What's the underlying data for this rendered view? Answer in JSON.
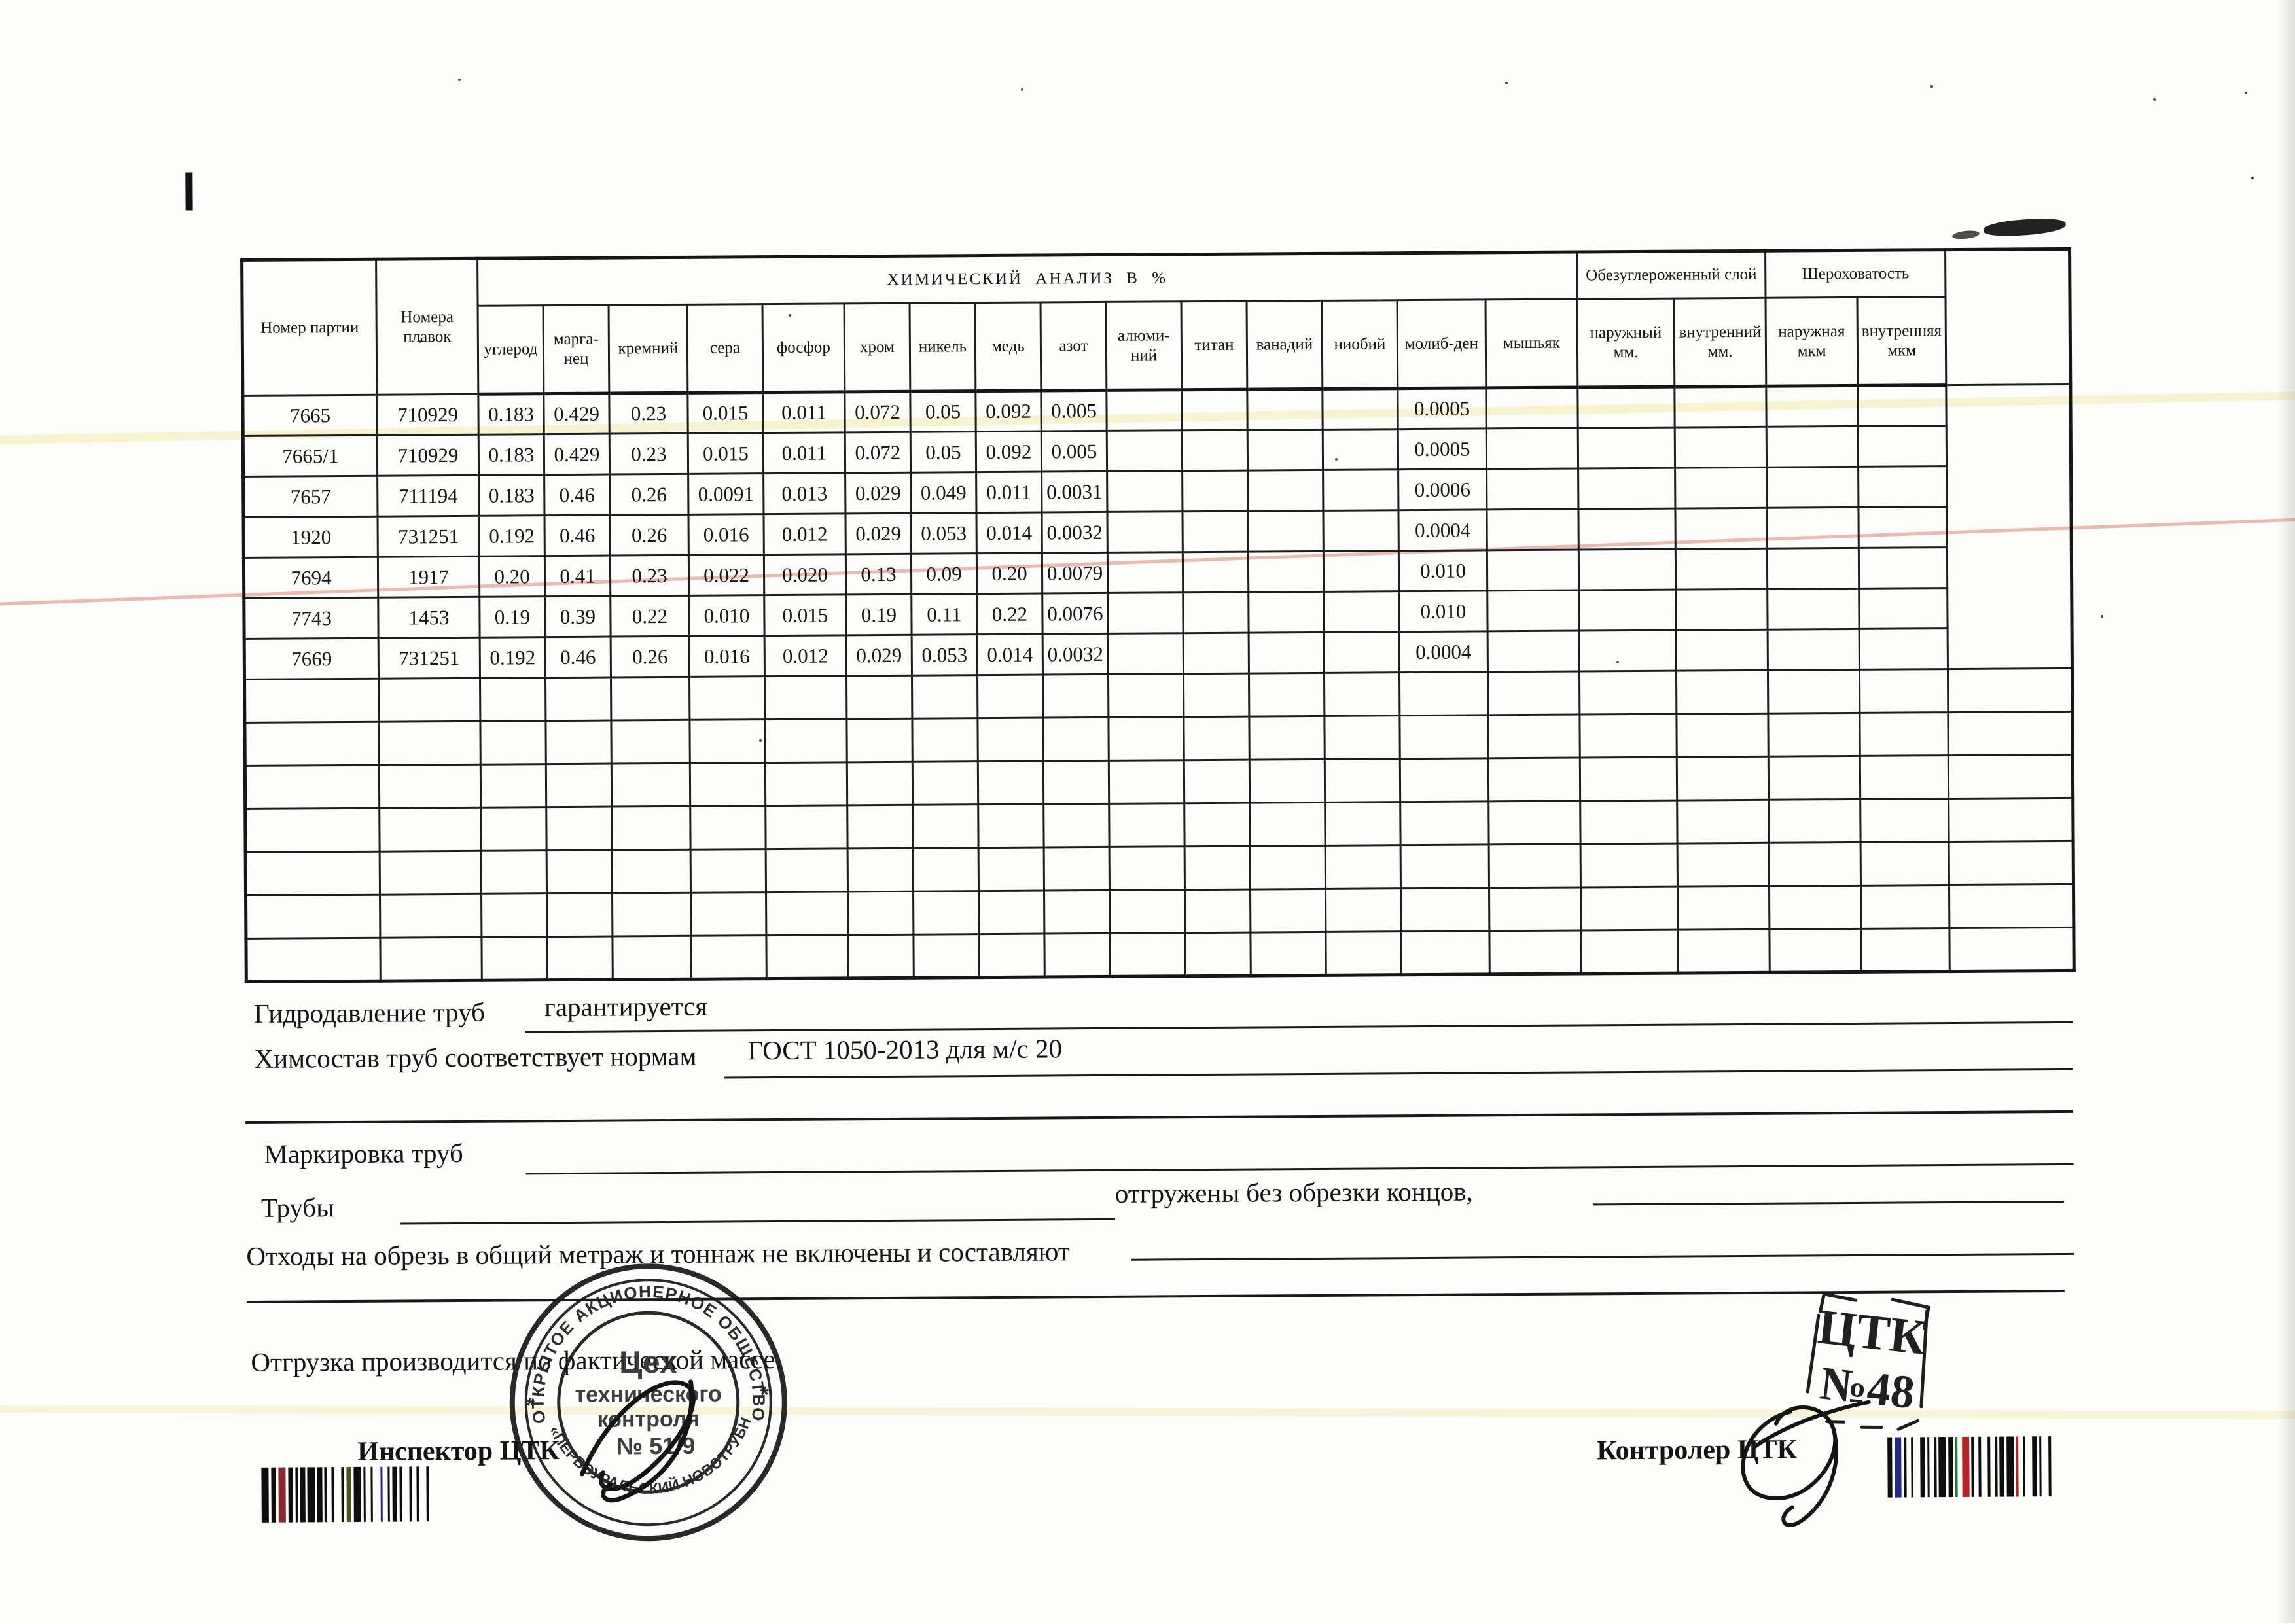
{
  "page": {
    "paper_color": "#fcfcfa",
    "ink_color": "#1c1c1c"
  },
  "table": {
    "title": "ХИМИЧЕСКИЙ АНАЛИЗ В %",
    "col_party": "Номер партии",
    "col_melt": "Номера плавок",
    "chem_columns": [
      "углерод",
      "марга-нец",
      "кремний",
      "сера",
      "фосфор",
      "хром",
      "никель",
      "медь",
      "азот",
      "алюми-ний",
      "титан",
      "ванадий",
      "ниобий",
      "молиб-ден",
      "мышьяк"
    ],
    "decarb_group": "Обезуглероженный слой",
    "decarb_columns": [
      "наружный мм.",
      "внутренний мм."
    ],
    "rough_group": "Шероховатость",
    "rough_columns": [
      "наружная мкм",
      "внутренняя мкм"
    ],
    "rows": [
      [
        "7665",
        "710929",
        "0.183",
        "0.429",
        "0.23",
        "0.015",
        "0.011",
        "0.072",
        "0.05",
        "0.092",
        "0.005",
        "",
        "",
        "",
        "",
        "0.0005"
      ],
      [
        "7665/1",
        "710929",
        "0.183",
        "0.429",
        "0.23",
        "0.015",
        "0.011",
        "0.072",
        "0.05",
        "0.092",
        "0.005",
        "",
        "",
        "",
        "",
        "0.0005"
      ],
      [
        "7657",
        "711194",
        "0.183",
        "0.46",
        "0.26",
        "0.0091",
        "0.013",
        "0.029",
        "0.049",
        "0.011",
        "0.0031",
        "",
        "",
        "",
        "",
        "0.0006"
      ],
      [
        "1920",
        "731251",
        "0.192",
        "0.46",
        "0.26",
        "0.016",
        "0.012",
        "0.029",
        "0.053",
        "0.014",
        "0.0032",
        "",
        "",
        "",
        "",
        "0.0004"
      ],
      [
        "7694",
        "1917",
        "0.20",
        "0.41",
        "0.23",
        "0.022",
        "0.020",
        "0.13",
        "0.09",
        "0.20",
        "0.0079",
        "",
        "",
        "",
        "",
        "0.010"
      ],
      [
        "7743",
        "1453",
        "0.19",
        "0.39",
        "0.22",
        "0.010",
        "0.015",
        "0.19",
        "0.11",
        "0.22",
        "0.0076",
        "",
        "",
        "",
        "",
        "0.010"
      ],
      [
        "7669",
        "731251",
        "0.192",
        "0.46",
        "0.26",
        "0.016",
        "0.012",
        "0.029",
        "0.053",
        "0.014",
        "0.0032",
        "",
        "",
        "",
        "",
        "0.0004"
      ]
    ],
    "empty_row_count": 7,
    "trailing_empty_cells": 5
  },
  "fields": {
    "hydro_label": "Гидродавление труб",
    "hydro_value": "гарантируется",
    "chem_label": "Химсостав труб соответствует нормам",
    "chem_value": "ГОСТ 1050-2013 для м/с 20",
    "marking_label": "Маркировка труб",
    "pipes_label": "Трубы",
    "shipped_text": "отгружены без обрезки концов,",
    "waste_label": "Отходы на обрезь в общий метраж и тоннаж не включены и составляют",
    "shipping_note": "Отгрузка производится по фактической массе.",
    "inspector_label": "Инспектор ЦТК",
    "controller_label": "Контролер ЦТК"
  },
  "stamps": {
    "round": {
      "ring_top": "ОТКРЫТОЕ АКЦИОНЕРНОЕ ОБЩЕСТВО",
      "ring_bottom": "«ПЕРВОУРАЛЬСКИЙ НОВОТРУБНЫЙ ЗАВОД»",
      "star_left": "*",
      "star_right": "*",
      "center_line1": "Цех",
      "center_line2": "технического",
      "center_line3": "контроля",
      "center_line4": "№ 51/9"
    },
    "ctk": {
      "line1": "ЦТК",
      "line2": "№48"
    }
  },
  "barcodes": {
    "left": {
      "pattern": "3121312111213121121311213112131211211312131",
      "accent_bars": {
        "2": "#8a2830",
        "11": "#4a541e",
        "15": "#232a86"
      }
    },
    "right": {
      "pattern": "2131121321121131211231121312112131121321131",
      "accent_bars": {
        "1": "#232a86",
        "9": "#1f7e38",
        "10": "#b52222",
        "17": "#b52222"
      }
    }
  }
}
